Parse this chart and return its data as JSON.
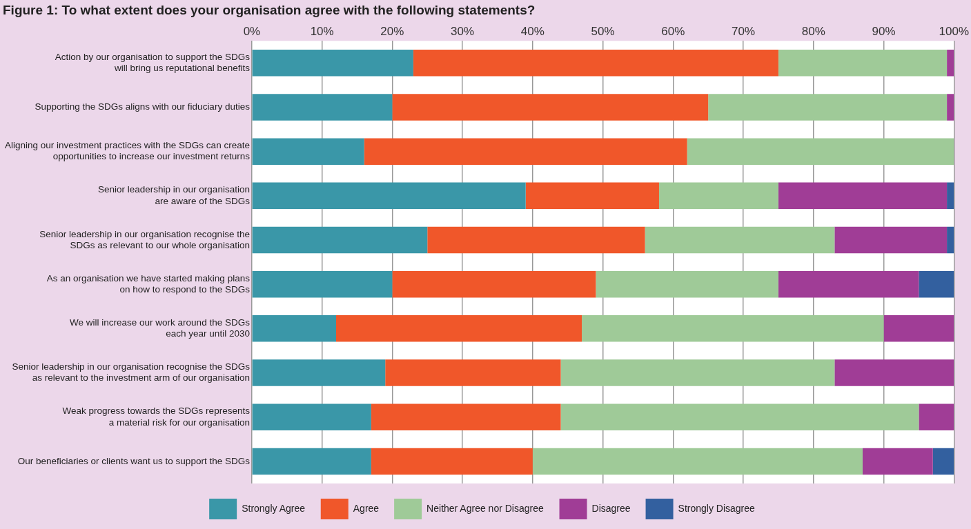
{
  "chart_data": {
    "type": "bar",
    "orientation": "horizontal",
    "stacked": true,
    "title": "Figure 1: To what extent does your organisation agree with the following statements?",
    "categories": [
      "Action by our organisation to support the SDGs\nwill bring us reputational benefits",
      "Supporting the SDGs aligns with our fiduciary duties",
      "Aligning our investment practices with the SDGs can create\nopportunities to increase our investment returns",
      "Senior leadership in our organisation\nare aware of the SDGs",
      "Senior leadership in our organisation recognise the\nSDGs as relevant to our whole organisation",
      "As an organisation we have started making plans\non how to respond to the SDGs",
      "We will increase our work around the SDGs\neach year until 2030",
      "Senior leadership in our organisation recognise the SDGs\nas relevant to the investment arm of our organisation",
      "Weak progress towards the SDGs represents\na material risk for our organisation",
      "Our beneficiaries or clients want us to support the SDGs"
    ],
    "series": [
      {
        "name": "Strongly Agree",
        "color": "#3a97a8",
        "values": [
          23,
          20,
          16,
          39,
          25,
          20,
          12,
          19,
          17,
          17
        ]
      },
      {
        "name": "Agree",
        "color": "#f0572a",
        "values": [
          52,
          45,
          46,
          19,
          31,
          29,
          35,
          25,
          27,
          23
        ]
      },
      {
        "name": "Neither Agree nor Disagree",
        "color": "#9fca98",
        "values": [
          24,
          34,
          38,
          17,
          27,
          26,
          43,
          39,
          51,
          47
        ]
      },
      {
        "name": "Disagree",
        "color": "#a03d96",
        "values": [
          1,
          1,
          0,
          24,
          16,
          20,
          10,
          17,
          5,
          10
        ]
      },
      {
        "name": "Strongly Disagree",
        "color": "#33609f",
        "values": [
          0,
          0,
          0,
          1,
          1,
          5,
          0,
          0,
          0,
          3
        ]
      }
    ],
    "xlim": [
      0,
      100
    ],
    "xticks": [
      {
        "value": 0,
        "label": "0%"
      },
      {
        "value": 10,
        "label": "10%"
      },
      {
        "value": 20,
        "label": "20%"
      },
      {
        "value": 30,
        "label": "30%"
      },
      {
        "value": 40,
        "label": "40%"
      },
      {
        "value": 50,
        "label": "50%"
      },
      {
        "value": 60,
        "label": "60%"
      },
      {
        "value": 70,
        "label": "70%"
      },
      {
        "value": 80,
        "label": "80%"
      },
      {
        "value": 90,
        "label": "90%"
      },
      {
        "value": 100,
        "label": "100%"
      }
    ],
    "grid": "x",
    "legend": "bottom"
  }
}
